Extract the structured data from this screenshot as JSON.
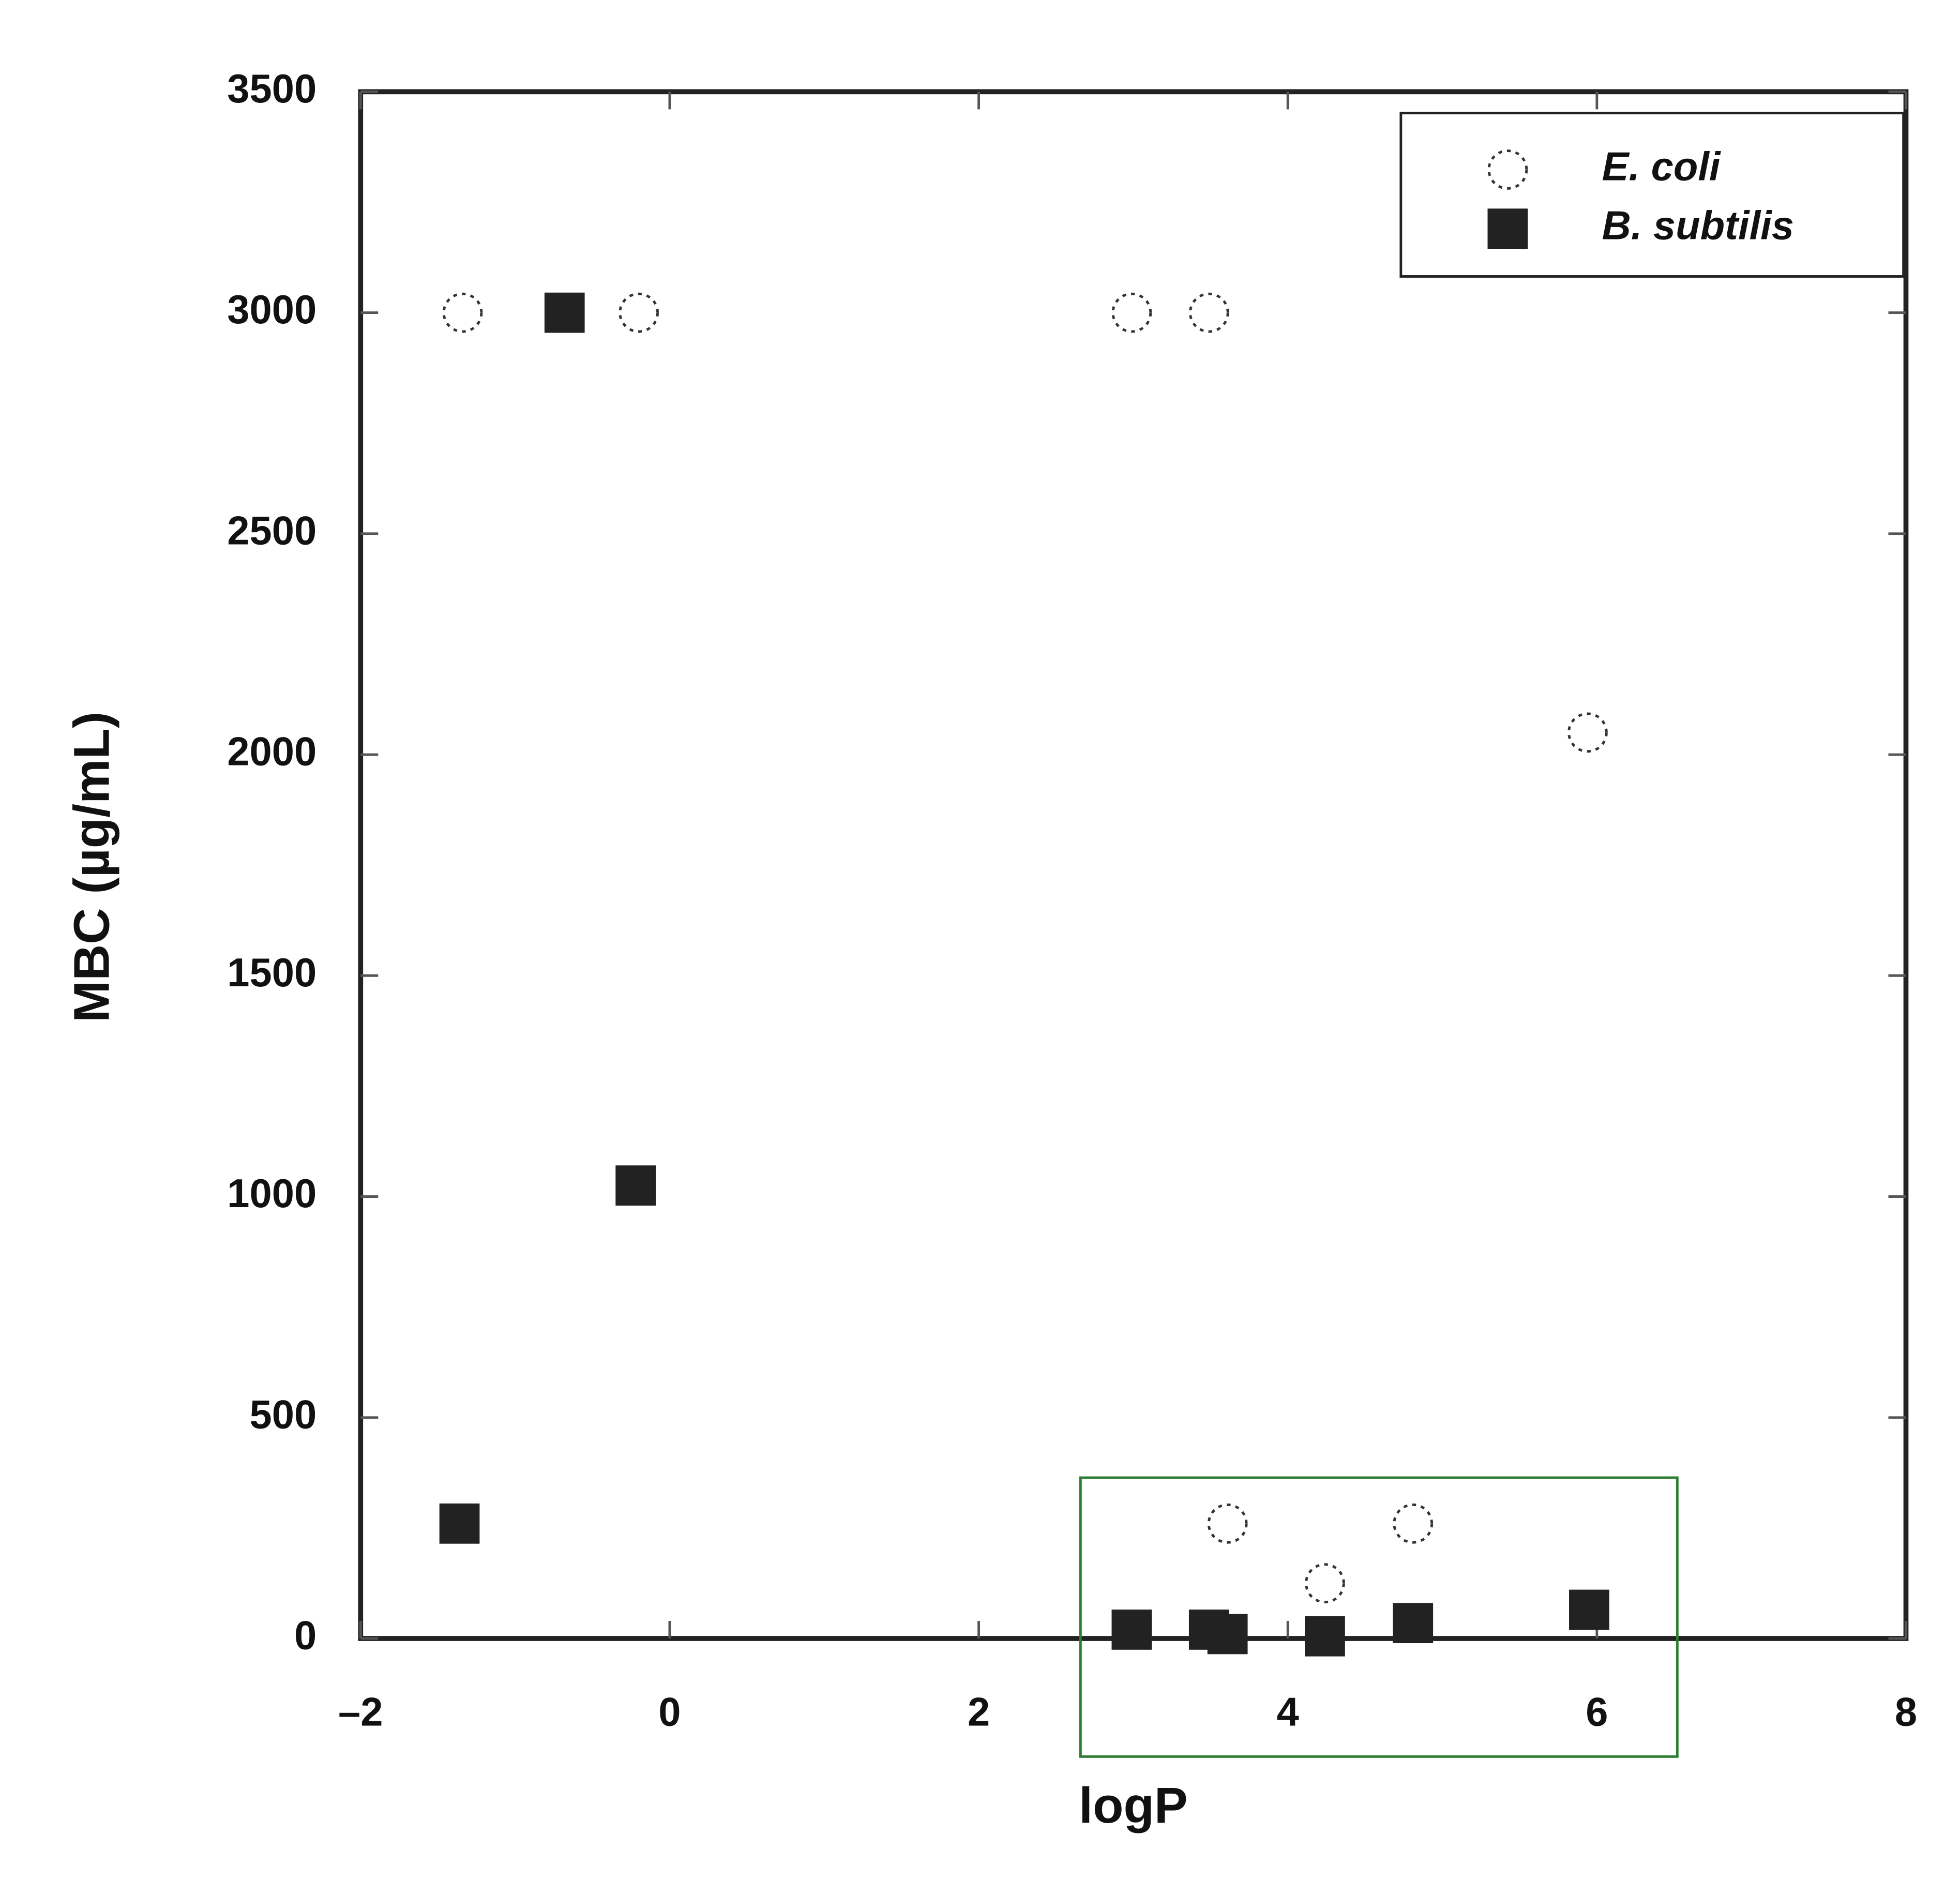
{
  "chart_data": {
    "type": "scatter",
    "x_label": "logP",
    "y_label": "MBC (µg/mL)",
    "xlim": [
      -2,
      8
    ],
    "xticks": [
      {
        "value": -2,
        "label": "–2"
      },
      0,
      2,
      4,
      6,
      8
    ],
    "ylim": [
      0,
      3500
    ],
    "yticks": [
      0,
      500,
      1000,
      1500,
      2000,
      2500,
      3000,
      3500
    ],
    "legend": "upper right",
    "series": [
      {
        "name": "E. coli",
        "marker": "open-circle",
        "color": "#333333",
        "x": [
          -1.34,
          -0.2,
          2.99,
          3.49,
          5.94,
          3.61,
          4.24,
          4.81
        ],
        "values": [
          3000,
          3000,
          3000,
          3000,
          2050,
          260,
          125,
          260
        ]
      },
      {
        "name": "B. subtilis",
        "marker": "filled-square",
        "color": "#222222",
        "x": [
          -1.36,
          -0.68,
          -0.22,
          2.99,
          3.49,
          3.61,
          4.24,
          4.81,
          5.95
        ],
        "values": [
          260,
          3000,
          1025,
          20,
          20,
          10,
          5,
          35,
          65
        ]
      }
    ]
  }
}
